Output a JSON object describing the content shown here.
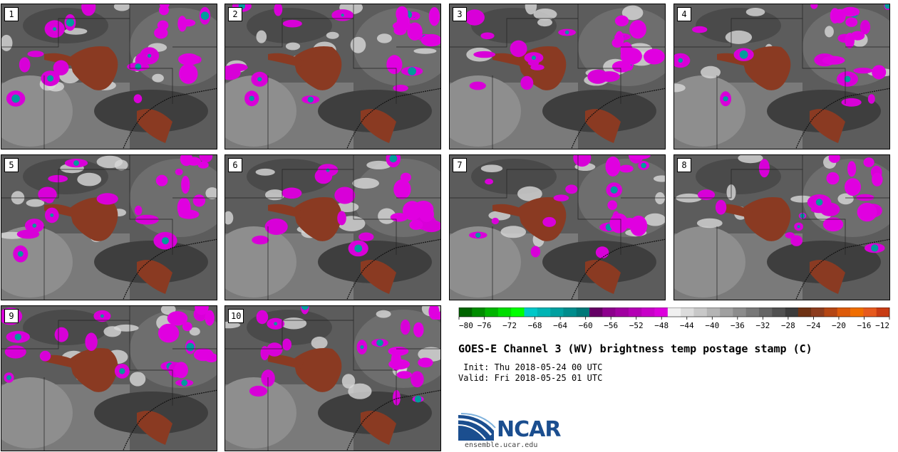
{
  "panels": [
    "1",
    "2",
    "3",
    "4",
    "5",
    "6",
    "7",
    "8",
    "9",
    "10"
  ],
  "colorbar": {
    "ticks": [
      "−80",
      "−76",
      "−72",
      "−68",
      "−64",
      "−60",
      "−56",
      "−52",
      "−48",
      "−44",
      "−40",
      "−36",
      "−32",
      "−28",
      "−24",
      "−20",
      "−16",
      "−12"
    ],
    "colors": [
      "#006400",
      "#008c00",
      "#00b400",
      "#00dc00",
      "#00ff00",
      "#00c8c8",
      "#00b4b4",
      "#00a0a0",
      "#008c8c",
      "#007878",
      "#640064",
      "#8c008c",
      "#a000a0",
      "#b400b4",
      "#c800c8",
      "#dc00dc",
      "#f0f0f0",
      "#dcdcdc",
      "#c8c8c8",
      "#b4b4b4",
      "#a0a0a0",
      "#8c8c8c",
      "#787878",
      "#646464",
      "#505050",
      "#3c3c3c",
      "#6e3214",
      "#8c3c1e",
      "#b44614",
      "#dc5a0a",
      "#f06e00",
      "#e65a1e",
      "#c83c14"
    ]
  },
  "title": "GOES-E Channel 3 (WV) brightness temp postage stamp (C)",
  "init": " Init: Thu 2018-05-24 00 UTC",
  "valid": "Valid: Fri 2018-05-25 01 UTC",
  "logo": {
    "name": "NCAR",
    "url": "ensemble.ucar.edu"
  }
}
